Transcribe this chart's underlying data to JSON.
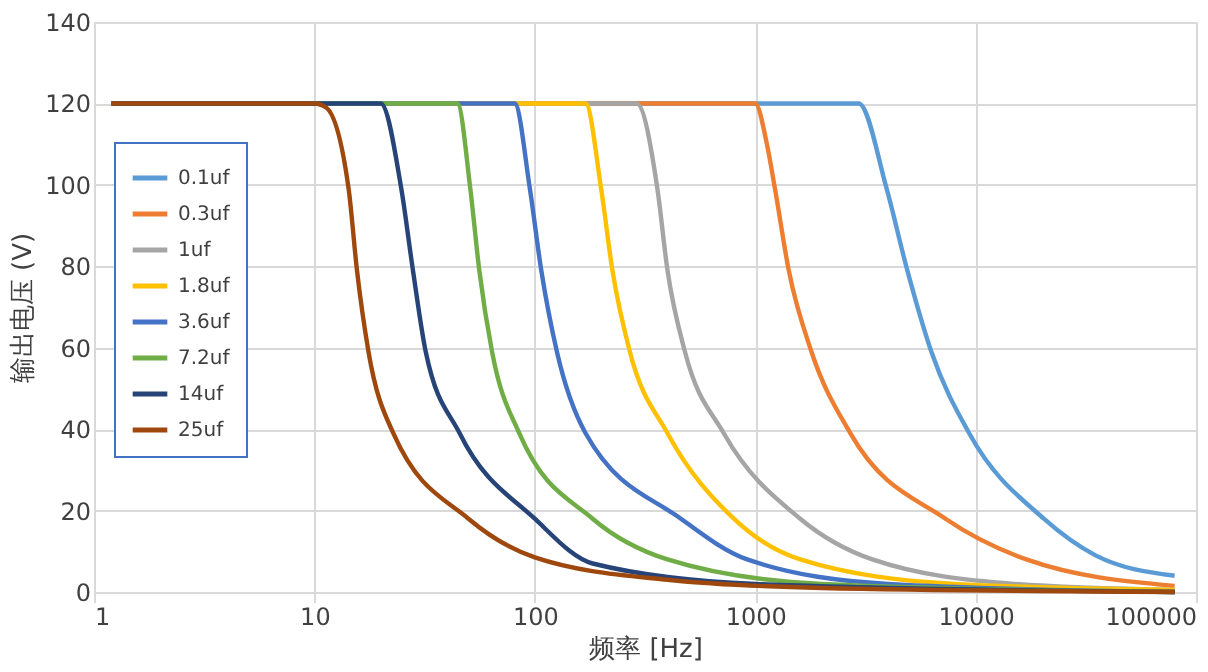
{
  "chart_data": {
    "type": "line",
    "xlabel": "频率 [Hz]",
    "ylabel": "输出电压 (V)",
    "log": "x",
    "xlim": [
      1,
      100000
    ],
    "xticks": [
      1,
      10,
      100,
      1000,
      10000,
      100000
    ],
    "ylim": [
      0,
      140
    ],
    "yticks": [
      0,
      20,
      40,
      60,
      80,
      100,
      120,
      140
    ],
    "grid": true,
    "legend": "top left",
    "marker": "none",
    "line_style": "solid",
    "series": [
      {
        "name": "0.1uf",
        "color": "#5b9bd5",
        "x": [
          1.2,
          1000,
          2950,
          3950,
          4900,
          6300,
          9350,
          20400,
          35000,
          80000
        ],
        "values": [
          120,
          120,
          120,
          99,
          79,
          59,
          39,
          18,
          9,
          4
        ]
      },
      {
        "name": "0.3uf",
        "color": "#ed7d31",
        "x": [
          1.2,
          100,
          1000,
          1130,
          1230,
          1420,
          1800,
          2700,
          7300,
          17000,
          80000
        ],
        "values": [
          120,
          120,
          120,
          110,
          99,
          79,
          59,
          39,
          18,
          8,
          1.5
        ]
      },
      {
        "name": "1uf",
        "color": "#a5a5a5",
        "x": [
          1.2,
          290,
          360,
          400,
          480,
          720,
          1600,
          3400,
          15000,
          80000
        ],
        "values": [
          120,
          120,
          99,
          79,
          59,
          39,
          18,
          8,
          2,
          0.5
        ]
      },
      {
        "name": "1.8uf",
        "color": "#ffc000",
        "x": [
          1.2,
          100,
          170,
          200,
          225,
          270,
          400,
          800,
          1600,
          8000,
          80000
        ],
        "values": [
          120,
          120,
          120,
          99,
          79,
          59,
          39,
          18,
          8,
          2,
          0.5
        ]
      },
      {
        "name": "3.6uf",
        "color": "#4472c4",
        "x": [
          1.2,
          10,
          81,
          95,
          107,
          126,
          170,
          460,
          920,
          4000,
          80000
        ],
        "values": [
          120,
          120,
          120,
          99,
          79,
          59,
          39,
          18,
          8,
          2,
          0
        ]
      },
      {
        "name": "7.2uf",
        "color": "#70ad47",
        "x": [
          1.2,
          10,
          44.5,
          51,
          56,
          64,
          85,
          183,
          400,
          2000,
          80000
        ],
        "values": [
          120,
          120,
          120,
          99,
          79,
          59,
          39,
          18,
          8,
          2,
          0
        ]
      },
      {
        "name": "14uf",
        "color": "#264478",
        "x": [
          1.2,
          10,
          20,
          24.8,
          28,
          32,
          45.6,
          100,
          183,
          1000,
          80000
        ],
        "values": [
          120,
          120,
          120,
          99,
          79,
          59,
          39,
          18,
          7,
          2,
          0
        ]
      },
      {
        "name": "25uf",
        "color": "#9e480e",
        "x": [
          1.2,
          10,
          11.3,
          14.3,
          15.6,
          17.6,
          22.8,
          50,
          100,
          400,
          2000,
          80000
        ],
        "values": [
          120,
          120,
          119,
          99,
          79,
          59,
          39,
          18,
          8.5,
          3,
          1,
          0
        ]
      }
    ]
  }
}
